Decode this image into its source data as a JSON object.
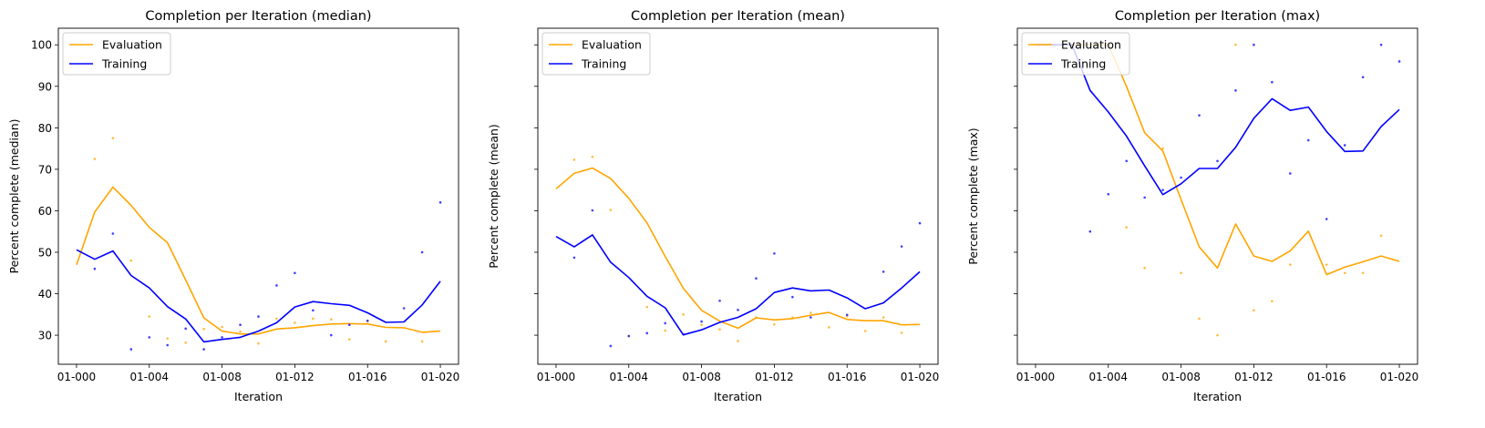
{
  "chart_data": [
    {
      "type": "line",
      "title": "Completion per Iteration (median)",
      "xlabel": "Iteration",
      "ylabel": "Percent complete (median)",
      "xlim": [
        -1,
        21
      ],
      "ylim": [
        23,
        104
      ],
      "x_ticks": [
        0,
        4,
        8,
        12,
        16,
        20
      ],
      "x_tick_labels": [
        "01-000",
        "01-004",
        "01-008",
        "01-012",
        "01-016",
        "01-020"
      ],
      "y_ticks": [
        30,
        40,
        50,
        60,
        70,
        80,
        90,
        100
      ],
      "y_tick_labels": [
        "30",
        "40",
        "50",
        "60",
        "70",
        "80",
        "90",
        "100"
      ],
      "show_y_tick_labels": true,
      "legend": "upper-left",
      "series": [
        {
          "name": "Evaluation",
          "color": "#ffa500",
          "line_x": [
            0,
            1,
            2,
            3,
            4,
            5,
            6,
            7,
            8,
            9,
            10,
            11,
            12,
            13,
            14,
            15,
            16,
            17,
            18,
            19,
            20
          ],
          "line_y": [
            47,
            59.7,
            65.7,
            61.3,
            56,
            52.3,
            43.3,
            34.2,
            31,
            30.3,
            30.3,
            31.5,
            31.8,
            32.3,
            32.7,
            32.8,
            32.7,
            31.9,
            31.8,
            30.7,
            31
          ],
          "points_x": [
            1,
            2,
            3,
            4,
            5,
            6,
            7,
            8,
            9,
            10,
            11,
            12,
            13,
            14,
            15,
            16,
            17,
            19
          ],
          "points_y": [
            72.5,
            77.5,
            48,
            34.5,
            29.2,
            28.2,
            31.5,
            32,
            30.9,
            28,
            34,
            33,
            34,
            33.8,
            29,
            33.3,
            28.5,
            28.5
          ]
        },
        {
          "name": "Training",
          "color": "#0000ff",
          "line_x": [
            0,
            1,
            2,
            3,
            4,
            5,
            6,
            7,
            8,
            9,
            10,
            11,
            12,
            13,
            14,
            15,
            16,
            17,
            18,
            19,
            20
          ],
          "line_y": [
            50.6,
            48.3,
            50.3,
            44.4,
            41.4,
            36.9,
            33.9,
            28.4,
            29,
            29.5,
            31,
            33,
            36.8,
            38.1,
            37.6,
            37.2,
            35.4,
            33.1,
            33.2,
            37.3,
            43
          ],
          "points_x": [
            1,
            2,
            3,
            4,
            5,
            6,
            7,
            8,
            9,
            10,
            11,
            12,
            13,
            14,
            15,
            16,
            18,
            19,
            20
          ],
          "points_y": [
            46,
            54.5,
            26.6,
            29.5,
            27.6,
            31.6,
            26.6,
            29.5,
            32.5,
            34.5,
            42,
            45,
            36,
            30,
            32.5,
            33.5,
            36.5,
            50,
            62
          ]
        }
      ]
    },
    {
      "type": "line",
      "title": "Completion per Iteration (mean)",
      "xlabel": "Iteration",
      "ylabel": "Percent complete (mean)",
      "xlim": [
        -1,
        21
      ],
      "ylim": [
        23,
        104
      ],
      "x_ticks": [
        0,
        4,
        8,
        12,
        16,
        20
      ],
      "x_tick_labels": [
        "01-000",
        "01-004",
        "01-008",
        "01-012",
        "01-016",
        "01-020"
      ],
      "y_ticks": [
        30,
        40,
        50,
        60,
        70,
        80,
        90,
        100
      ],
      "y_tick_labels": [
        "",
        "",
        "",
        "",
        "",
        "",
        "",
        ""
      ],
      "show_y_tick_labels": false,
      "legend": "upper-left",
      "series": [
        {
          "name": "Evaluation",
          "color": "#ffa500",
          "line_x": [
            0,
            1,
            2,
            3,
            4,
            5,
            6,
            7,
            8,
            9,
            10,
            11,
            12,
            13,
            14,
            15,
            16,
            17,
            18,
            19,
            20
          ],
          "line_y": [
            65.3,
            69,
            70.3,
            67.8,
            63,
            57.1,
            49,
            41.3,
            36,
            33.4,
            31.7,
            34.2,
            33.7,
            34,
            34.8,
            35.5,
            33.8,
            33.5,
            33.5,
            32.5,
            32.6
          ],
          "points_x": [
            1,
            2,
            3,
            4,
            5,
            6,
            7,
            8,
            9,
            10,
            11,
            12,
            13,
            14,
            15,
            16,
            17,
            18,
            19
          ],
          "points_y": [
            72.3,
            73,
            60.2,
            29.8,
            36.8,
            31.1,
            35,
            32.5,
            31.4,
            28.6,
            34.3,
            32.6,
            34.3,
            35.4,
            31.9,
            34.6,
            31,
            34.3,
            30.6
          ]
        },
        {
          "name": "Training",
          "color": "#0000ff",
          "line_x": [
            0,
            1,
            2,
            3,
            4,
            5,
            6,
            7,
            8,
            9,
            10,
            11,
            12,
            13,
            14,
            15,
            16,
            17,
            18,
            19,
            20
          ],
          "line_y": [
            53.8,
            51.3,
            54.2,
            47.6,
            43.9,
            39.4,
            36.6,
            30.1,
            31.3,
            33.1,
            34.3,
            36.4,
            40.3,
            41.4,
            40.7,
            40.9,
            39,
            36.4,
            37.8,
            41.4,
            45.3
          ],
          "points_x": [
            1,
            2,
            3,
            4,
            5,
            6,
            7,
            8,
            9,
            10,
            11,
            12,
            13,
            14,
            16,
            18,
            19,
            20
          ],
          "points_y": [
            48.7,
            60.1,
            27.4,
            29.8,
            30.5,
            32.9,
            30.2,
            33.3,
            38.3,
            36.1,
            43.7,
            49.7,
            39.2,
            34.3,
            34.9,
            45.3,
            51.4,
            57
          ]
        }
      ]
    },
    {
      "type": "line",
      "title": "Completion per Iteration (max)",
      "xlabel": "Iteration",
      "ylabel": "Percent complete (max)",
      "xlim": [
        -1,
        21
      ],
      "ylim": [
        23,
        104
      ],
      "x_ticks": [
        0,
        4,
        8,
        12,
        16,
        20
      ],
      "x_tick_labels": [
        "01-000",
        "01-004",
        "01-008",
        "01-012",
        "01-016",
        "01-020"
      ],
      "y_ticks": [
        30,
        40,
        50,
        60,
        70,
        80,
        90,
        100
      ],
      "y_tick_labels": [
        "",
        "",
        "",
        "",
        "",
        "",
        "",
        ""
      ],
      "show_y_tick_labels": false,
      "legend": "upper-left",
      "series": [
        {
          "name": "Evaluation",
          "color": "#ffa500",
          "line_x": [
            0,
            1,
            2,
            3,
            4,
            5,
            6,
            7,
            8,
            9,
            10,
            11,
            12,
            13,
            14,
            15,
            16,
            17,
            18,
            19,
            20
          ],
          "line_y": [
            100,
            100,
            100,
            100,
            100,
            90,
            78.8,
            74.4,
            62.7,
            51.3,
            46.2,
            56.8,
            49.1,
            47.8,
            50.3,
            55.1,
            44.6,
            46.4,
            47.7,
            49.1,
            47.8
          ],
          "points_x": [
            1,
            2,
            3,
            4,
            5,
            6,
            7,
            8,
            9,
            10,
            11,
            12,
            13,
            14,
            16,
            17,
            18,
            19
          ],
          "points_y": [
            100,
            100,
            100,
            100,
            56,
            46.2,
            75,
            45,
            34,
            30,
            100,
            36,
            38.2,
            47,
            47,
            45,
            45,
            54
          ]
        },
        {
          "name": "Training",
          "color": "#0000ff",
          "line_x": [
            0,
            1,
            2,
            3,
            4,
            5,
            6,
            7,
            8,
            9,
            10,
            11,
            12,
            13,
            14,
            15,
            16,
            17,
            18,
            19,
            20
          ],
          "line_y": [
            100,
            100,
            100,
            89,
            83.8,
            78,
            70.8,
            63.9,
            66.5,
            70.2,
            70.2,
            75.3,
            82.3,
            87,
            84.2,
            85,
            79.1,
            74.3,
            74.4,
            80.3,
            84.4
          ],
          "points_x": [
            1,
            2,
            3,
            4,
            5,
            6,
            7,
            8,
            9,
            10,
            11,
            12,
            13,
            14,
            15,
            16,
            17,
            18,
            19,
            20
          ],
          "points_y": [
            100,
            100,
            55,
            64,
            72,
            63.2,
            65,
            68,
            83,
            72,
            89,
            100,
            91,
            69,
            77,
            58,
            75.8,
            92.2,
            100,
            96
          ]
        }
      ]
    }
  ]
}
